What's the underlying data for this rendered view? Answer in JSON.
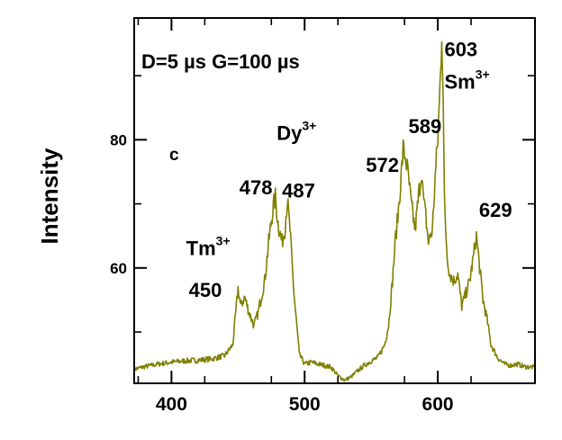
{
  "chart_data": {
    "type": "line",
    "title": "",
    "xlabel": "",
    "ylabel": "Intensity",
    "xlim": [
      372,
      673
    ],
    "ylim": [
      42,
      99
    ],
    "x_ticks": [
      400,
      500,
      600
    ],
    "y_ticks": [
      60,
      80
    ],
    "grid": false,
    "line_color": "#808000",
    "condition": "D=5 µs G=100 µs",
    "panel_label": "c",
    "series": [
      {
        "x": [
          372,
          380,
          390,
          400,
          410,
          420,
          430,
          440,
          446,
          450,
          452,
          455,
          458,
          462,
          465,
          470,
          473,
          476,
          478,
          480,
          483,
          485,
          487,
          489,
          492,
          496,
          500,
          505,
          510,
          515,
          520,
          525,
          530,
          535,
          540,
          545,
          550,
          555,
          560,
          563,
          566,
          568,
          570,
          572,
          574,
          576,
          578,
          580,
          583,
          586,
          588,
          589,
          591,
          593,
          596,
          598,
          600,
          601,
          602,
          603,
          604,
          605,
          607,
          609,
          612,
          615,
          618,
          621,
          624,
          627,
          629,
          631,
          634,
          637,
          640,
          645,
          650,
          655,
          660,
          665,
          673
        ],
        "y": [
          44.2,
          44.6,
          45.0,
          45.3,
          45.5,
          45.6,
          45.8,
          46.3,
          48.0,
          56.8,
          54.0,
          55.5,
          53.2,
          51.0,
          53.0,
          58.0,
          64.0,
          69.0,
          71.0,
          67.0,
          64.0,
          66.0,
          70.5,
          66.0,
          56.0,
          46.5,
          45.0,
          45.3,
          45.0,
          44.8,
          44.5,
          43.2,
          42.5,
          43.0,
          44.0,
          44.8,
          45.5,
          46.0,
          48.0,
          51.0,
          58.0,
          64.0,
          68.0,
          73.0,
          78.5,
          77.0,
          74.0,
          70.0,
          66.0,
          72.0,
          75.5,
          71.0,
          68.0,
          64.0,
          66.0,
          74.0,
          80.0,
          85.0,
          90.0,
          97.0,
          88.0,
          70.0,
          62.0,
          59.0,
          58.0,
          59.0,
          54.0,
          56.0,
          58.0,
          62.0,
          65.0,
          61.0,
          55.0,
          52.0,
          48.0,
          46.0,
          45.0,
          44.8,
          45.0,
          44.6,
          44.5
        ]
      }
    ],
    "annotations": [
      {
        "text": "603",
        "x": 605,
        "y": 93
      },
      {
        "text": "Sm",
        "sup": "3+",
        "x": 605,
        "y": 88
      },
      {
        "text": "589",
        "x": 578,
        "y": 81
      },
      {
        "text": "572",
        "x": 546,
        "y": 75
      },
      {
        "text": "629",
        "x": 631,
        "y": 68
      },
      {
        "text": "Dy",
        "sup": "3+",
        "x": 479,
        "y": 80
      },
      {
        "text": "478",
        "x": 451,
        "y": 71.5
      },
      {
        "text": "487",
        "x": 483,
        "y": 71
      },
      {
        "text": "Tm",
        "sup": "3+",
        "x": 411,
        "y": 62
      },
      {
        "text": "450",
        "x": 413,
        "y": 55.5
      }
    ]
  }
}
